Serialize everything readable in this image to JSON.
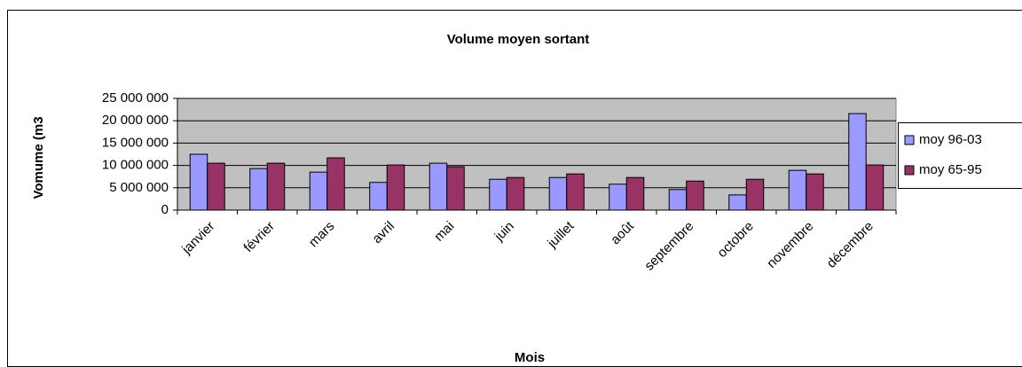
{
  "chart_data": {
    "type": "bar",
    "title": "Volume moyen sortant",
    "x_label": "Mois",
    "y_label": "Vomume (m3",
    "categories": [
      "janvier",
      "février",
      "mars",
      "avril",
      "mai",
      "juin",
      "juillet",
      "août",
      "septembre",
      "octobre",
      "novembre",
      "décembre"
    ],
    "series": [
      {
        "name": "moy 96-03",
        "color": "#9999ff",
        "values": [
          12500000,
          9300000,
          8500000,
          6200000,
          10500000,
          6900000,
          7300000,
          5800000,
          4600000,
          3400000,
          8900000,
          21600000
        ]
      },
      {
        "name": "moy 65-95",
        "color": "#993366",
        "values": [
          10500000,
          10500000,
          11700000,
          10100000,
          9700000,
          7300000,
          8100000,
          7300000,
          6500000,
          6900000,
          8100000,
          10100000
        ]
      }
    ],
    "ylim": [
      0,
      25000000
    ],
    "yticks": [
      0,
      {
        "value": 5000000,
        "label": "5 000 000"
      },
      {
        "value": 10000000,
        "label": "10 000 000"
      },
      {
        "value": 15000000,
        "label": "15 000 000"
      },
      {
        "value": 20000000,
        "label": "20 000 000"
      },
      {
        "value": 25000000,
        "label": "25 000 000"
      }
    ],
    "grid": true,
    "legend": "right"
  }
}
